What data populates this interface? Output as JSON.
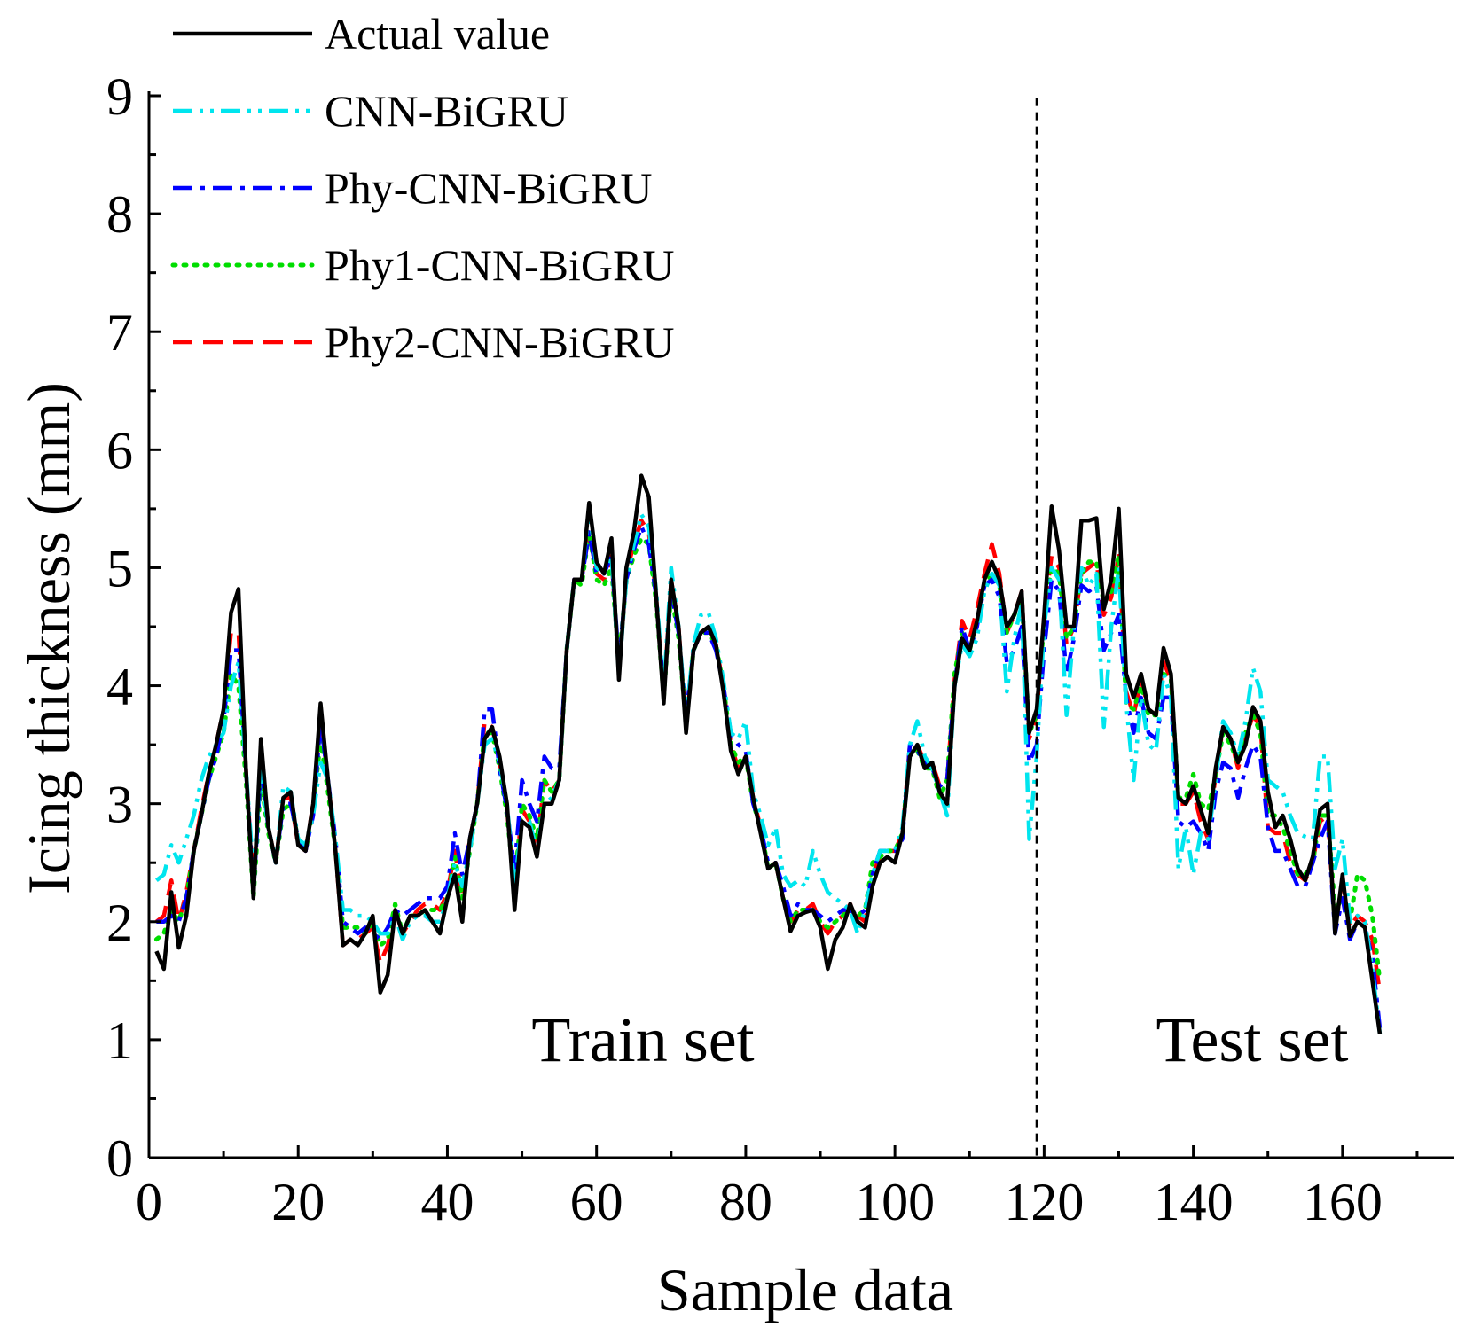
{
  "chart_data": {
    "type": "line",
    "xlabel": "Sample data",
    "ylabel": "Icing thickness (mm)",
    "xlim": [
      0,
      175
    ],
    "ylim": [
      0,
      9
    ],
    "xticks": [
      "0",
      "20",
      "40",
      "60",
      "80",
      "100",
      "120",
      "140",
      "160"
    ],
    "yticks": [
      "0",
      "1",
      "2",
      "3",
      "4",
      "5",
      "6",
      "7",
      "8",
      "9"
    ],
    "split_x": 119,
    "annotations": {
      "train": "Train set",
      "test": "Test set"
    },
    "series": [
      {
        "name": "Actual value",
        "color": "#000000",
        "dash": "solid",
        "values": [
          1.75,
          1.6,
          2.25,
          1.78,
          2.05,
          2.6,
          2.9,
          3.25,
          3.5,
          3.8,
          4.62,
          4.82,
          3.3,
          2.2,
          3.55,
          2.8,
          2.5,
          3.05,
          3.1,
          2.65,
          2.6,
          3.0,
          3.85,
          3.2,
          2.6,
          1.8,
          1.85,
          1.8,
          1.9,
          2.05,
          1.4,
          1.55,
          2.1,
          1.9,
          2.05,
          2.05,
          2.1,
          2.0,
          1.9,
          2.2,
          2.4,
          2.0,
          2.7,
          3.0,
          3.55,
          3.65,
          3.4,
          3.0,
          2.1,
          2.85,
          2.8,
          2.55,
          3.0,
          3.0,
          3.2,
          4.3,
          4.9,
          4.9,
          5.55,
          5.05,
          4.95,
          5.25,
          4.05,
          5.0,
          5.3,
          5.78,
          5.6,
          4.75,
          3.85,
          4.9,
          4.5,
          3.6,
          4.3,
          4.45,
          4.5,
          4.35,
          3.95,
          3.45,
          3.25,
          3.4,
          3.05,
          2.75,
          2.45,
          2.5,
          2.2,
          1.92,
          2.05,
          2.08,
          2.1,
          1.95,
          1.6,
          1.85,
          1.95,
          2.15,
          2.0,
          1.95,
          2.3,
          2.5,
          2.55,
          2.5,
          2.75,
          3.4,
          3.5,
          3.3,
          3.35,
          3.1,
          3.0,
          4.0,
          4.4,
          4.3,
          4.55,
          4.9,
          5.05,
          4.9,
          4.5,
          4.6,
          4.8,
          3.6,
          3.8,
          4.6,
          5.52,
          5.15,
          4.5,
          4.5,
          5.4,
          5.4,
          5.42,
          4.65,
          4.9,
          5.5,
          4.1,
          3.9,
          4.1,
          3.8,
          3.75,
          4.32,
          4.1,
          3.05,
          3.0,
          3.15,
          2.95,
          2.75,
          3.3,
          3.65,
          3.55,
          3.35,
          3.5,
          3.82,
          3.7,
          3.1,
          2.8,
          2.9,
          2.7,
          2.45,
          2.35,
          2.55,
          2.95,
          3.0,
          1.9,
          2.4,
          1.88,
          2.0,
          1.95,
          1.5,
          1.05
        ],
        "start_x": 1
      },
      {
        "name": "CNN-BiGRU",
        "color": "#00e5ee",
        "dash": "dashdotdot",
        "values": [
          2.35,
          2.4,
          2.65,
          2.5,
          2.7,
          2.9,
          3.2,
          3.4,
          3.5,
          3.6,
          4.0,
          4.2,
          3.3,
          2.4,
          3.3,
          2.8,
          2.5,
          3.15,
          3.1,
          2.7,
          2.65,
          2.9,
          3.35,
          3.2,
          2.7,
          2.1,
          2.1,
          2.05,
          2.05,
          2.0,
          1.9,
          1.9,
          2.05,
          1.85,
          2.0,
          2.05,
          2.05,
          2.0,
          2.0,
          2.2,
          2.5,
          2.3,
          2.6,
          3.0,
          3.5,
          3.55,
          3.35,
          3.0,
          2.3,
          2.85,
          2.85,
          2.6,
          3.0,
          3.05,
          3.2,
          4.3,
          4.9,
          4.9,
          5.5,
          5.0,
          4.95,
          5.1,
          4.1,
          4.9,
          5.2,
          5.45,
          5.35,
          4.8,
          3.95,
          5.0,
          4.5,
          3.7,
          4.35,
          4.6,
          4.62,
          4.4,
          4.05,
          3.6,
          3.55,
          3.7,
          3.1,
          2.9,
          2.65,
          2.8,
          2.4,
          2.3,
          2.35,
          2.3,
          2.6,
          2.4,
          2.25,
          2.2,
          2.15,
          2.1,
          1.9,
          2.1,
          2.4,
          2.6,
          2.6,
          2.6,
          2.8,
          3.5,
          3.7,
          3.4,
          3.3,
          3.1,
          2.9,
          4.0,
          4.35,
          4.25,
          4.4,
          4.8,
          4.95,
          4.85,
          3.95,
          4.4,
          4.7,
          2.7,
          3.4,
          4.5,
          5.0,
          4.9,
          3.75,
          4.5,
          5.0,
          4.85,
          4.95,
          3.65,
          4.5,
          5.0,
          3.85,
          3.2,
          3.9,
          3.5,
          3.45,
          4.1,
          3.9,
          2.45,
          2.8,
          2.4,
          2.75,
          2.7,
          3.2,
          3.7,
          3.6,
          3.4,
          3.7,
          4.15,
          3.95,
          3.2,
          3.15,
          3.1,
          2.9,
          2.75,
          2.72,
          2.7,
          3.4,
          3.4,
          2.45,
          2.7,
          2.0,
          2.05,
          2.0,
          1.6,
          1.05
        ],
        "start_x": 1
      },
      {
        "name": "Phy-CNN-BiGRU",
        "color": "#0000ff",
        "dash": "dashdot",
        "values": [
          2.0,
          2.0,
          2.05,
          2.0,
          2.2,
          2.6,
          2.9,
          3.2,
          3.4,
          3.7,
          4.3,
          4.3,
          3.3,
          2.25,
          3.3,
          2.8,
          2.5,
          3.0,
          3.0,
          2.7,
          2.6,
          2.9,
          3.7,
          3.2,
          2.7,
          2.0,
          1.95,
          1.9,
          1.95,
          1.9,
          1.85,
          1.95,
          2.1,
          2.05,
          2.1,
          2.15,
          2.2,
          2.2,
          2.2,
          2.3,
          2.75,
          2.4,
          2.7,
          3.0,
          3.8,
          3.8,
          3.3,
          2.95,
          2.45,
          3.2,
          3.0,
          2.85,
          3.4,
          3.3,
          3.3,
          4.3,
          4.9,
          4.9,
          5.3,
          4.95,
          4.95,
          5.1,
          4.2,
          4.9,
          5.15,
          5.35,
          5.2,
          4.75,
          3.95,
          4.8,
          4.45,
          3.75,
          4.3,
          4.45,
          4.45,
          4.3,
          4.0,
          3.6,
          3.5,
          3.45,
          3.0,
          2.8,
          2.5,
          2.5,
          2.3,
          2.05,
          2.15,
          2.1,
          2.1,
          2.05,
          2.0,
          2.05,
          2.1,
          2.1,
          2.05,
          2.1,
          2.4,
          2.6,
          2.6,
          2.6,
          2.7,
          3.5,
          3.45,
          3.35,
          3.3,
          3.15,
          3.2,
          4.0,
          4.5,
          4.3,
          4.5,
          4.85,
          4.9,
          4.75,
          4.2,
          4.3,
          4.5,
          3.35,
          3.5,
          4.3,
          4.9,
          4.8,
          4.1,
          4.4,
          4.85,
          4.8,
          4.85,
          4.3,
          4.45,
          4.6,
          3.9,
          3.6,
          3.9,
          3.6,
          3.55,
          3.9,
          3.9,
          2.85,
          2.8,
          2.85,
          2.75,
          2.6,
          3.1,
          3.35,
          3.3,
          3.05,
          3.3,
          3.5,
          3.4,
          2.8,
          2.6,
          2.6,
          2.45,
          2.3,
          2.3,
          2.5,
          2.7,
          2.85,
          1.9,
          2.2,
          1.85,
          2.0,
          1.95,
          1.7,
          1.1
        ],
        "start_x": 1
      },
      {
        "name": "Phy1-CNN-BiGRU",
        "color": "#00dd00",
        "dash": "dotted",
        "values": [
          1.85,
          1.9,
          2.1,
          2.0,
          2.2,
          2.6,
          2.9,
          3.2,
          3.4,
          3.6,
          4.1,
          4.0,
          3.2,
          2.2,
          3.2,
          2.75,
          2.5,
          2.95,
          3.0,
          2.7,
          2.6,
          2.95,
          3.55,
          3.1,
          2.6,
          1.95,
          1.95,
          1.95,
          1.9,
          2.0,
          1.8,
          1.85,
          2.15,
          1.9,
          2.05,
          2.05,
          2.1,
          2.1,
          2.1,
          2.2,
          2.55,
          2.2,
          2.6,
          3.0,
          3.6,
          3.6,
          3.3,
          2.9,
          2.3,
          3.0,
          2.9,
          2.7,
          3.2,
          3.1,
          3.2,
          4.3,
          4.9,
          4.85,
          5.3,
          4.9,
          4.85,
          5.0,
          4.2,
          4.9,
          5.1,
          5.25,
          5.2,
          4.7,
          3.9,
          4.8,
          4.4,
          3.7,
          4.3,
          4.45,
          4.45,
          4.35,
          4.0,
          3.5,
          3.35,
          3.4,
          3.0,
          2.8,
          2.45,
          2.5,
          2.2,
          2.0,
          2.1,
          2.1,
          2.1,
          2.0,
          1.95,
          2.0,
          2.05,
          2.1,
          2.05,
          2.1,
          2.5,
          2.55,
          2.6,
          2.6,
          2.75,
          3.45,
          3.45,
          3.3,
          3.3,
          3.05,
          3.2,
          4.1,
          4.45,
          4.3,
          4.55,
          4.85,
          4.95,
          4.85,
          4.45,
          4.6,
          4.75,
          3.6,
          3.75,
          4.55,
          5.0,
          4.95,
          4.4,
          4.5,
          4.95,
          5.05,
          5.05,
          4.7,
          4.8,
          5.1,
          3.85,
          3.8,
          4.0,
          3.75,
          3.75,
          4.1,
          4.05,
          3.05,
          3.05,
          3.25,
          3.0,
          2.95,
          3.25,
          3.6,
          3.5,
          3.35,
          3.6,
          3.75,
          3.6,
          2.9,
          2.9,
          2.8,
          2.6,
          2.4,
          2.4,
          2.5,
          2.9,
          2.9,
          2.1,
          2.2,
          2.0,
          2.4,
          2.35,
          2.05,
          1.5
        ],
        "start_x": 1
      },
      {
        "name": "Phy2-CNN-BiGRU",
        "color": "#ff0000",
        "dash": "dashed",
        "values": [
          2.0,
          2.05,
          2.35,
          2.0,
          2.25,
          2.6,
          2.95,
          3.25,
          3.5,
          3.8,
          4.45,
          4.45,
          3.3,
          2.3,
          3.35,
          2.8,
          2.5,
          3.05,
          3.05,
          2.65,
          2.6,
          3.0,
          3.75,
          3.2,
          2.6,
          1.8,
          1.85,
          1.85,
          1.9,
          1.95,
          1.65,
          1.8,
          2.1,
          1.9,
          2.0,
          2.1,
          2.15,
          2.15,
          2.1,
          2.25,
          2.6,
          2.2,
          2.7,
          3.0,
          3.7,
          3.65,
          3.35,
          2.95,
          2.3,
          2.95,
          2.85,
          2.65,
          3.2,
          3.1,
          3.2,
          4.3,
          4.9,
          4.9,
          5.3,
          4.95,
          4.9,
          5.1,
          4.1,
          4.95,
          5.2,
          5.4,
          5.3,
          4.75,
          3.9,
          4.9,
          4.5,
          3.65,
          4.3,
          4.45,
          4.5,
          4.35,
          4.0,
          3.5,
          3.3,
          3.4,
          3.05,
          2.8,
          2.45,
          2.5,
          2.2,
          2.0,
          2.1,
          2.1,
          2.15,
          2.0,
          1.9,
          2.0,
          2.05,
          2.15,
          2.05,
          2.0,
          2.4,
          2.55,
          2.6,
          2.6,
          2.75,
          3.5,
          3.5,
          3.35,
          3.35,
          3.15,
          3.2,
          4.05,
          4.55,
          4.4,
          4.65,
          4.95,
          5.2,
          4.95,
          4.45,
          4.6,
          4.8,
          3.55,
          3.75,
          4.6,
          5.1,
          5.0,
          4.35,
          4.5,
          4.95,
          5.0,
          5.05,
          4.6,
          4.75,
          5.1,
          3.95,
          3.75,
          4.05,
          3.8,
          3.75,
          4.2,
          4.05,
          3.0,
          3.0,
          3.1,
          2.85,
          2.7,
          3.25,
          3.65,
          3.55,
          3.3,
          3.55,
          3.75,
          3.65,
          2.8,
          2.75,
          2.75,
          2.5,
          2.4,
          2.35,
          2.5,
          2.85,
          2.9,
          1.95,
          2.35,
          1.95,
          2.05,
          2.0,
          1.85,
          1.4
        ],
        "start_x": 1
      }
    ]
  }
}
